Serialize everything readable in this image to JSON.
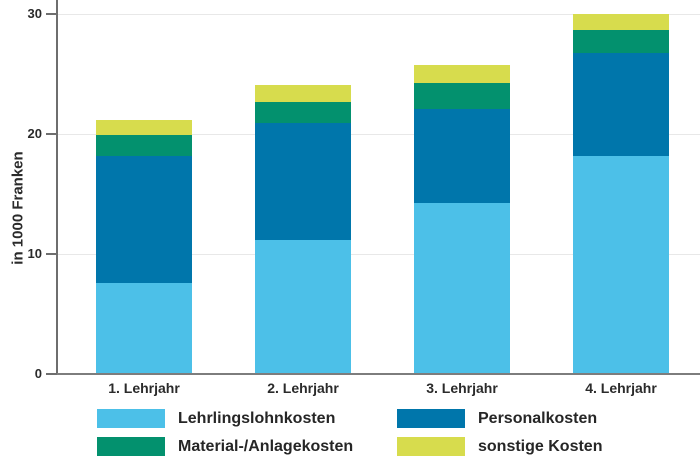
{
  "chart_data": {
    "type": "bar",
    "stacked": true,
    "title": "",
    "xlabel": "",
    "ylabel": "in 1000 Franken",
    "ylim": [
      0,
      30
    ],
    "yticks": [
      0,
      10,
      20,
      30
    ],
    "grid": true,
    "legend_position": "bottom",
    "categories": [
      "1. Lehrjahr",
      "2. Lehrjahr",
      "3. Lehrjahr",
      "4. Lehrjahr"
    ],
    "series": [
      {
        "name": "Lehrlingslohnkosten",
        "color": "#4cc0e8",
        "values": [
          7.5,
          11.1,
          14.2,
          18.1
        ]
      },
      {
        "name": "Personalkosten",
        "color": "#0076ab",
        "values": [
          10.6,
          9.7,
          7.8,
          8.6
        ]
      },
      {
        "name": "Material-/Anlagekosten",
        "color": "#03916e",
        "values": [
          1.7,
          1.8,
          2.2,
          1.9
        ]
      },
      {
        "name": "sonstige Kosten",
        "color": "#d7dc4d",
        "values": [
          1.3,
          1.4,
          1.5,
          1.3
        ]
      }
    ],
    "totals": [
      21.1,
      24.0,
      25.7,
      29.9
    ],
    "colors": {
      "gridline": "#e8e8e8",
      "axis": "#6e6e6e",
      "text": "#2b2b2b"
    }
  },
  "legend": {
    "display_order": [
      "Lehrlingslohnkosten",
      "Personalkosten",
      "Material-/Anlagekosten",
      "sonstige Kosten"
    ]
  }
}
